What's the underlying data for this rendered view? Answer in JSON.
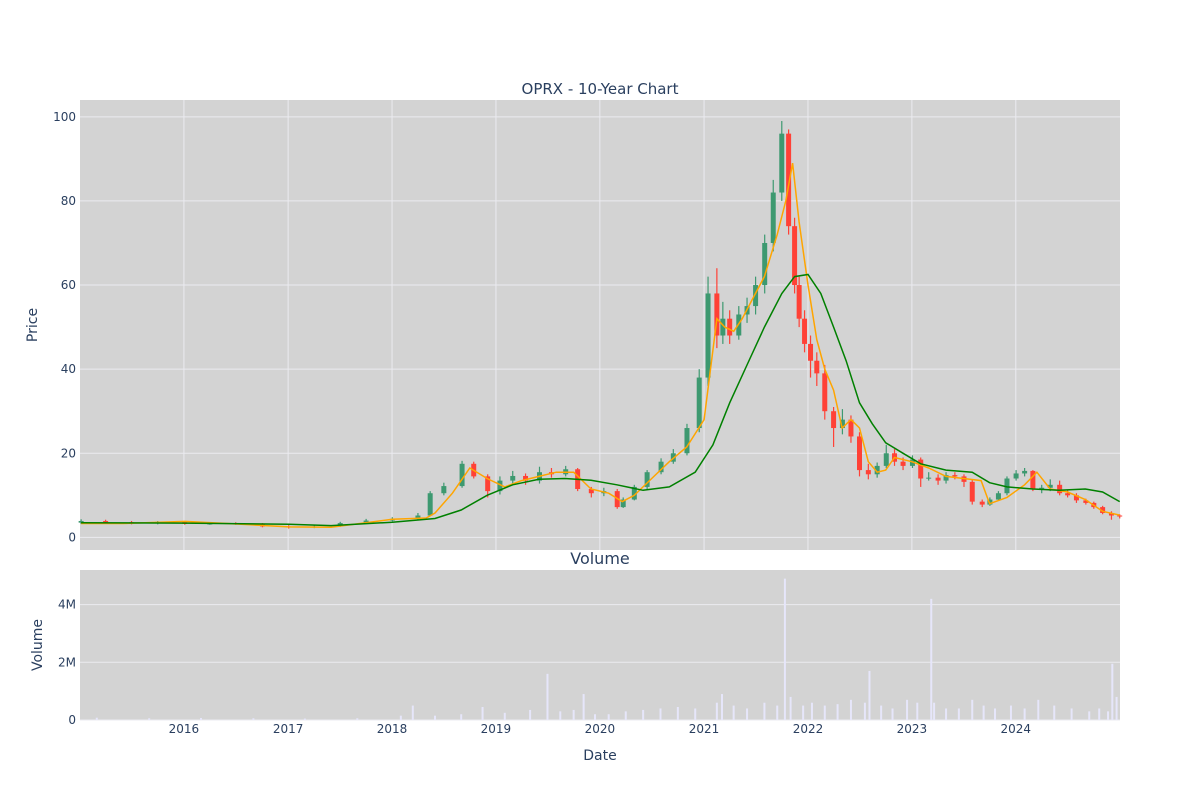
{
  "chart_data": [
    {
      "type": "candlestick",
      "title": "OPRX - 10-Year Chart",
      "ylabel": "Price",
      "ylim": [
        -3,
        104
      ],
      "xlim": [
        "2015-01-01",
        "2025-01-01"
      ],
      "x_tick_labels": [
        "2016",
        "2017",
        "2018",
        "2019",
        "2020",
        "2021",
        "2022",
        "2023",
        "2024"
      ],
      "y_tick_labels": [
        "0",
        "20",
        "40",
        "60",
        "80",
        "100"
      ],
      "y_ticks": [
        0,
        20,
        40,
        60,
        80,
        100
      ],
      "grid": true,
      "increasing_color": "#3d9970",
      "decreasing_color": "#ff4136",
      "plot_bg": "#d3d3d3",
      "series": [
        {
          "kind": "price",
          "x": [
            "2015-01-05",
            "2015-04-01",
            "2015-07-01",
            "2015-10-01",
            "2016-01-04",
            "2016-04-01",
            "2016-07-01",
            "2016-10-03",
            "2017-01-03",
            "2017-04-03",
            "2017-07-03",
            "2017-10-02",
            "2018-01-02",
            "2018-04-02",
            "2018-05-15",
            "2018-07-02",
            "2018-09-04",
            "2018-10-15",
            "2018-12-03",
            "2019-01-15",
            "2019-03-01",
            "2019-04-15",
            "2019-06-03",
            "2019-07-15",
            "2019-09-03",
            "2019-10-15",
            "2019-12-02",
            "2020-01-15",
            "2020-03-02",
            "2020-03-23",
            "2020-05-01",
            "2020-06-15",
            "2020-08-03",
            "2020-09-15",
            "2020-11-02",
            "2020-12-15",
            "2021-01-15",
            "2021-02-15",
            "2021-03-08",
            "2021-04-01",
            "2021-05-03",
            "2021-06-01",
            "2021-07-01",
            "2021-08-02",
            "2021-09-01",
            "2021-10-01",
            "2021-10-25",
            "2021-11-15",
            "2021-12-01",
            "2021-12-20",
            "2022-01-10",
            "2022-02-01",
            "2022-03-01",
            "2022-04-01",
            "2022-05-02",
            "2022-06-01",
            "2022-07-01",
            "2022-08-01",
            "2022-09-01",
            "2022-10-03",
            "2022-11-01",
            "2022-12-01",
            "2023-01-03",
            "2023-02-01",
            "2023-03-01",
            "2023-04-03",
            "2023-05-01",
            "2023-06-01",
            "2023-07-03",
            "2023-08-01",
            "2023-09-05",
            "2023-10-02",
            "2023-11-01",
            "2023-12-01",
            "2024-01-02",
            "2024-02-01",
            "2024-03-01",
            "2024-04-01",
            "2024-05-01",
            "2024-06-03",
            "2024-07-01",
            "2024-08-01",
            "2024-09-03",
            "2024-10-01",
            "2024-11-01",
            "2024-12-02",
            "2024-12-31"
          ],
          "open": [
            3.5,
            3.9,
            3.6,
            3.3,
            3.7,
            3.2,
            3.3,
            3.2,
            2.6,
            2.4,
            2.6,
            3.4,
            4.0,
            4.4,
            5.2,
            10.5,
            12.2,
            17.5,
            14.5,
            11.0,
            13.5,
            14.6,
            13.5,
            15.5,
            15.0,
            16.2,
            11.5,
            10.5,
            11.0,
            7.2,
            9.0,
            12.0,
            15.5,
            18.0,
            20.0,
            26.0,
            38.0,
            58.0,
            48.0,
            52.0,
            48.0,
            53.0,
            55.0,
            60.0,
            70.0,
            82.0,
            96.0,
            74.0,
            60.0,
            52.0,
            46.0,
            42.0,
            39.0,
            30.0,
            26.0,
            28.0,
            24.0,
            16.0,
            15.0,
            17.0,
            20.0,
            18.0,
            17.0,
            18.5,
            14.0,
            14.2,
            13.5,
            14.8,
            14.5,
            13.2,
            8.5,
            7.8,
            9.0,
            10.5,
            14.0,
            15.2,
            15.8,
            11.5,
            11.8,
            12.5,
            10.5,
            10.0,
            8.8,
            8.2,
            7.2,
            5.8,
            5.2
          ],
          "close": [
            3.9,
            3.6,
            3.3,
            3.7,
            3.2,
            3.3,
            3.2,
            2.6,
            2.4,
            2.6,
            3.4,
            4.0,
            4.4,
            5.2,
            10.5,
            12.2,
            17.5,
            14.5,
            11.0,
            13.5,
            14.6,
            13.5,
            15.5,
            15.0,
            16.2,
            11.5,
            10.5,
            11.0,
            7.2,
            9.0,
            12.0,
            15.5,
            18.0,
            20.0,
            26.0,
            38.0,
            58.0,
            48.0,
            52.0,
            48.0,
            53.0,
            55.0,
            60.0,
            70.0,
            82.0,
            96.0,
            74.0,
            60.0,
            52.0,
            46.0,
            42.0,
            39.0,
            30.0,
            26.0,
            28.0,
            24.0,
            16.0,
            15.0,
            17.0,
            20.0,
            18.0,
            17.0,
            18.5,
            14.0,
            14.2,
            13.5,
            14.8,
            14.5,
            13.2,
            8.5,
            7.8,
            9.0,
            10.5,
            14.0,
            15.2,
            15.8,
            11.5,
            11.8,
            12.5,
            10.5,
            10.0,
            8.8,
            8.2,
            7.2,
            5.8,
            5.2,
            5.0
          ],
          "high": [
            4.3,
            4.2,
            3.9,
            3.9,
            3.9,
            3.6,
            3.6,
            3.4,
            2.9,
            2.9,
            3.7,
            4.4,
            4.8,
            5.8,
            11.0,
            13.0,
            18.2,
            18.0,
            15.0,
            14.5,
            15.8,
            15.2,
            16.8,
            16.5,
            17.0,
            16.5,
            12.0,
            11.8,
            11.5,
            9.5,
            12.5,
            16.0,
            18.8,
            21.0,
            27.0,
            40.0,
            62.0,
            64.0,
            56.0,
            54.0,
            55.0,
            57.0,
            62.0,
            72.0,
            85.0,
            99.0,
            97.0,
            76.0,
            62.0,
            54.0,
            48.0,
            44.0,
            41.0,
            31.0,
            30.5,
            29.0,
            25.0,
            17.5,
            17.8,
            22.0,
            21.0,
            19.0,
            19.5,
            19.0,
            15.5,
            15.0,
            15.5,
            15.5,
            15.0,
            13.8,
            9.0,
            9.5,
            11.0,
            14.5,
            16.0,
            16.5,
            16.0,
            12.5,
            13.8,
            13.5,
            11.2,
            10.5,
            9.2,
            8.5,
            7.5,
            6.2,
            5.5
          ],
          "low": [
            3.2,
            3.4,
            3.1,
            3.1,
            3.0,
            3.0,
            3.0,
            2.4,
            2.1,
            2.2,
            2.5,
            3.2,
            3.8,
            4.2,
            5.0,
            10.0,
            11.8,
            14.0,
            9.5,
            10.2,
            12.8,
            12.5,
            12.8,
            14.2,
            14.5,
            11.0,
            9.5,
            9.8,
            6.8,
            7.0,
            8.8,
            11.5,
            15.0,
            17.5,
            19.5,
            25.0,
            36.0,
            45.0,
            46.0,
            46.0,
            47.0,
            51.0,
            53.0,
            58.0,
            68.0,
            80.0,
            72.0,
            58.0,
            50.0,
            44.0,
            38.0,
            36.0,
            28.0,
            21.5,
            24.5,
            22.5,
            14.5,
            13.8,
            14.2,
            16.5,
            17.0,
            16.0,
            16.5,
            12.0,
            13.5,
            12.5,
            12.8,
            13.8,
            12.0,
            7.8,
            7.2,
            7.5,
            8.8,
            10.0,
            13.5,
            14.5,
            11.0,
            10.5,
            11.0,
            10.0,
            9.5,
            8.2,
            7.8,
            6.8,
            5.5,
            4.2,
            4.5
          ]
        },
        {
          "kind": "ma-short",
          "color": "#ffa500",
          "x": [
            "2015-01-05",
            "2015-06-01",
            "2016-01-04",
            "2016-06-01",
            "2017-01-03",
            "2017-06-01",
            "2018-01-02",
            "2018-05-01",
            "2018-06-01",
            "2018-08-01",
            "2018-10-01",
            "2018-12-01",
            "2019-02-01",
            "2019-04-01",
            "2019-06-01",
            "2019-08-01",
            "2019-10-01",
            "2019-12-01",
            "2020-02-01",
            "2020-03-20",
            "2020-05-01",
            "2020-07-01",
            "2020-09-01",
            "2020-11-01",
            "2021-01-01",
            "2021-02-15",
            "2021-03-15",
            "2021-04-15",
            "2021-05-15",
            "2021-06-15",
            "2021-08-01",
            "2021-09-15",
            "2021-10-15",
            "2021-11-08",
            "2021-12-01",
            "2022-01-01",
            "2022-02-01",
            "2022-03-01",
            "2022-04-01",
            "2022-05-01",
            "2022-06-01",
            "2022-07-01",
            "2022-08-01",
            "2022-09-01",
            "2022-10-01",
            "2022-11-01",
            "2023-01-01",
            "2023-03-01",
            "2023-05-01",
            "2023-07-01",
            "2023-09-01",
            "2023-10-01",
            "2023-12-01",
            "2024-02-01",
            "2024-03-15",
            "2024-05-01",
            "2024-07-01",
            "2024-09-01",
            "2024-11-01",
            "2024-12-31"
          ],
          "y": [
            3.3,
            3.3,
            3.8,
            3.3,
            2.5,
            2.4,
            4.3,
            4.6,
            5.8,
            10.5,
            16.5,
            14.0,
            12.0,
            13.5,
            14.5,
            15.5,
            15.5,
            11.5,
            10.5,
            8.5,
            10.0,
            14.0,
            18.0,
            21.5,
            28.0,
            52.0,
            50.0,
            49.0,
            52.0,
            56.0,
            62.0,
            72.0,
            80.0,
            89.0,
            75.0,
            60.0,
            47.0,
            40.0,
            35.0,
            26.0,
            28.0,
            26.0,
            18.0,
            15.5,
            16.0,
            19.0,
            18.0,
            16.5,
            14.5,
            14.0,
            13.5,
            8.0,
            9.5,
            12.5,
            15.5,
            11.5,
            10.8,
            9.0,
            6.2,
            5.3
          ]
        },
        {
          "kind": "ma-long",
          "color": "#008000",
          "x": [
            "2015-01-05",
            "2016-01-04",
            "2017-01-03",
            "2017-06-01",
            "2018-01-02",
            "2018-06-01",
            "2018-09-01",
            "2018-12-01",
            "2019-03-01",
            "2019-06-01",
            "2019-09-01",
            "2019-12-01",
            "2020-03-01",
            "2020-06-01",
            "2020-09-01",
            "2020-12-01",
            "2021-02-01",
            "2021-04-01",
            "2021-06-01",
            "2021-08-01",
            "2021-10-01",
            "2021-11-15",
            "2022-01-01",
            "2022-02-15",
            "2022-04-01",
            "2022-05-15",
            "2022-07-01",
            "2022-08-15",
            "2022-10-01",
            "2022-12-01",
            "2023-02-01",
            "2023-05-01",
            "2023-08-01",
            "2023-10-01",
            "2023-12-01",
            "2024-03-01",
            "2024-06-01",
            "2024-09-01",
            "2024-11-01",
            "2024-12-31"
          ],
          "y": [
            3.5,
            3.4,
            3.1,
            2.8,
            3.6,
            4.5,
            6.5,
            10.0,
            12.5,
            13.8,
            14.0,
            13.6,
            12.5,
            11.2,
            12.0,
            15.5,
            22.0,
            32.0,
            41.0,
            50.0,
            58.0,
            62.0,
            62.5,
            58.0,
            50.0,
            42.0,
            32.0,
            27.0,
            22.5,
            20.0,
            17.5,
            16.0,
            15.5,
            13.0,
            12.0,
            11.5,
            11.2,
            11.5,
            10.8,
            8.5
          ]
        }
      ]
    },
    {
      "type": "bar",
      "title": "Volume",
      "xlabel": "Date",
      "ylabel": "Volume",
      "ylim": [
        0,
        5200000
      ],
      "y_tick_labels": [
        "0",
        "2M",
        "4M"
      ],
      "y_ticks": [
        0,
        2000000,
        4000000
      ],
      "grid": true,
      "bar_color": "#e6e6fa",
      "plot_bg": "#d3d3d3",
      "x": [
        "2015-03-01",
        "2015-09-01",
        "2016-03-01",
        "2016-09-01",
        "2017-03-01",
        "2017-09-01",
        "2018-02-01",
        "2018-03-15",
        "2018-06-01",
        "2018-09-01",
        "2018-11-15",
        "2019-02-01",
        "2019-05-01",
        "2019-07-01",
        "2019-08-15",
        "2019-10-01",
        "2019-11-05",
        "2019-12-15",
        "2020-02-01",
        "2020-04-01",
        "2020-06-01",
        "2020-08-01",
        "2020-10-01",
        "2020-12-01",
        "2021-02-15",
        "2021-03-05",
        "2021-04-15",
        "2021-06-01",
        "2021-08-01",
        "2021-09-15",
        "2021-10-12",
        "2021-11-01",
        "2021-12-15",
        "2022-01-15",
        "2022-03-01",
        "2022-04-15",
        "2022-06-01",
        "2022-07-20",
        "2022-08-05",
        "2022-09-15",
        "2022-10-25",
        "2022-12-15",
        "2023-01-20",
        "2023-03-10",
        "2023-03-20",
        "2023-05-01",
        "2023-06-15",
        "2023-08-01",
        "2023-09-10",
        "2023-10-20",
        "2023-12-15",
        "2024-02-01",
        "2024-03-20",
        "2024-05-15",
        "2024-07-15",
        "2024-09-15",
        "2024-10-20",
        "2024-11-20",
        "2024-12-05",
        "2024-12-20"
      ],
      "values": [
        80000,
        60000,
        70000,
        60000,
        50000,
        60000,
        150000,
        500000,
        150000,
        200000,
        450000,
        250000,
        350000,
        1600000,
        300000,
        350000,
        900000,
        200000,
        200000,
        300000,
        350000,
        400000,
        450000,
        400000,
        600000,
        900000,
        500000,
        400000,
        600000,
        500000,
        4900000,
        800000,
        500000,
        600000,
        500000,
        550000,
        700000,
        600000,
        1700000,
        500000,
        400000,
        700000,
        600000,
        4200000,
        600000,
        400000,
        400000,
        700000,
        500000,
        400000,
        500000,
        400000,
        700000,
        500000,
        400000,
        300000,
        400000,
        300000,
        1950000,
        800000
      ]
    }
  ]
}
